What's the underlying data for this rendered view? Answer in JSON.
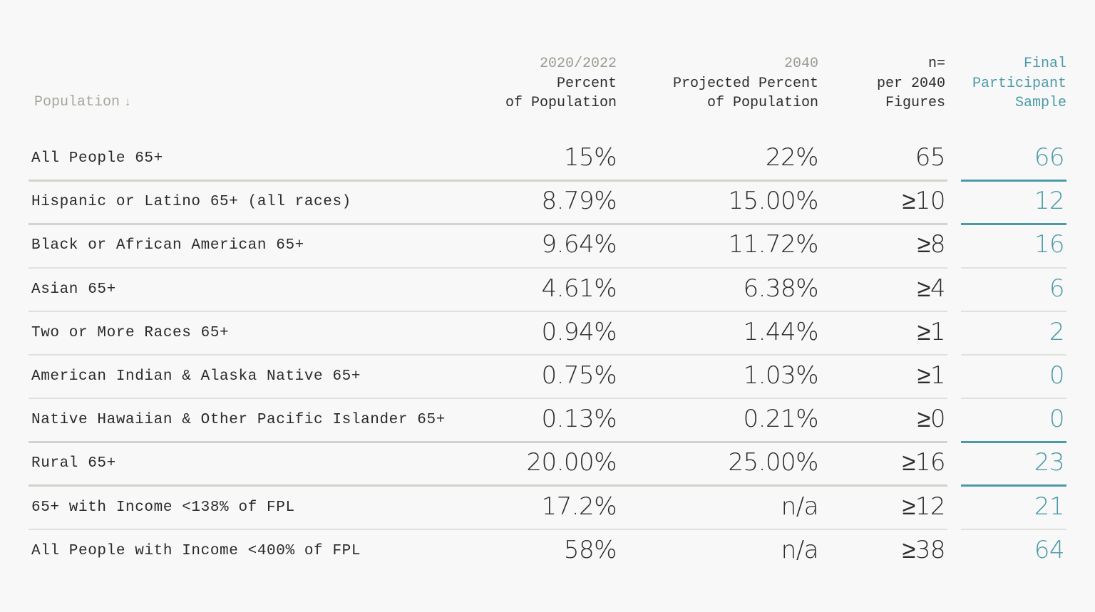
{
  "header": {
    "population": "Population",
    "population_arrow": "↓",
    "col1_year": "2020/2022",
    "col1_line1": "Percent",
    "col1_line2": "of Population",
    "col2_year": "2040",
    "col2_line1": "Projected Percent",
    "col2_line2": "of Population",
    "col3_line0": "n=",
    "col3_line1": "per 2040",
    "col3_line2": "Figures",
    "col4_line0": "Final",
    "col4_line1": "Participant",
    "col4_line2": "Sample"
  },
  "colors": {
    "accent": "#4a9aa8",
    "muted": "#9c9a92",
    "text": "#2c2c2c",
    "background": "#f8f8f8"
  },
  "rows": [
    {
      "population": "All People 65+",
      "pct_2020": "15%",
      "pct_2040": "22%",
      "n": "65",
      "sample": "66"
    },
    {
      "population": "Hispanic or Latino 65+ (all races)",
      "pct_2020": "8.79%",
      "pct_2040": "15.00%",
      "n": "≥10",
      "sample": "12"
    },
    {
      "population": "Black or African American 65+",
      "pct_2020": "9.64%",
      "pct_2040": "11.72%",
      "n": "≥8",
      "sample": "16"
    },
    {
      "population": "Asian 65+",
      "pct_2020": "4.61%",
      "pct_2040": "6.38%",
      "n": "≥4",
      "sample": "6"
    },
    {
      "population": "Two or More Races 65+",
      "pct_2020": "0.94%",
      "pct_2040": "1.44%",
      "n": "≥1",
      "sample": "2"
    },
    {
      "population": "American Indian & Alaska Native 65+",
      "pct_2020": "0.75%",
      "pct_2040": "1.03%",
      "n": "≥1",
      "sample": "0"
    },
    {
      "population": "Native Hawaiian & Other Pacific Islander 65+",
      "pct_2020": "0.13%",
      "pct_2040": "0.21%",
      "n": "≥0",
      "sample": "0"
    },
    {
      "population": "Rural 65+",
      "pct_2020": "20.00%",
      "pct_2040": "25.00%",
      "n": "≥16",
      "sample": "23"
    },
    {
      "population": "65+ with Income <138% of FPL",
      "pct_2020": "17.2%",
      "pct_2040": "n/a",
      "n": "≥12",
      "sample": "21"
    },
    {
      "population": "All People with Income <400% of FPL",
      "pct_2020": "58%",
      "pct_2040": "n/a",
      "n": "≥38",
      "sample": "64"
    }
  ]
}
